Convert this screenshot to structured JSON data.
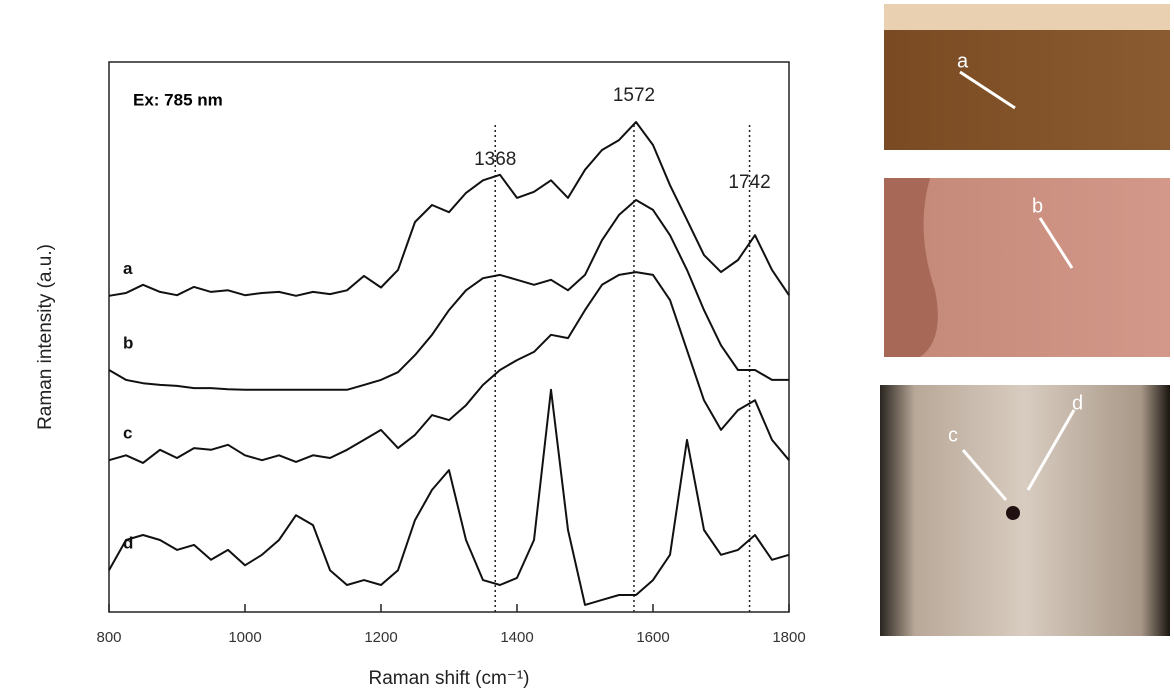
{
  "chart_data": {
    "type": "line",
    "inset_label": "Ex: 785 nm",
    "x_label": "Raman shift (cm⁻¹)",
    "y_label": "Raman intensity (a.u.)",
    "xlim": [
      800,
      1800
    ],
    "xticks": [
      800,
      1000,
      1200,
      1400,
      1600,
      1800
    ],
    "ylim": [
      0,
      100
    ],
    "peaks": [
      1368,
      1572,
      1742
    ],
    "x": [
      800,
      825,
      850,
      875,
      900,
      925,
      950,
      975,
      1000,
      1025,
      1050,
      1075,
      1100,
      1125,
      1150,
      1175,
      1200,
      1225,
      1250,
      1275,
      1300,
      1325,
      1350,
      1375,
      1400,
      1425,
      1450,
      1475,
      1500,
      1525,
      1550,
      1575,
      1600,
      1625,
      1650,
      1675,
      1700,
      1725,
      1750,
      1775,
      1800
    ],
    "series": [
      {
        "name": "a",
        "color": "#111111",
        "values": [
          57.5,
          58,
          59.5,
          58.2,
          57.6,
          59.1,
          58.2,
          58.5,
          57.6,
          58,
          58.2,
          57.5,
          58.2,
          57.8,
          58.5,
          61.1,
          59,
          62.2,
          70.9,
          74,
          72.7,
          76.2,
          78.5,
          79.5,
          75.3,
          76.4,
          78.5,
          75.3,
          80.4,
          84,
          85.8,
          89.1,
          84.9,
          77.6,
          71.3,
          64.9,
          61.8,
          64,
          68.5,
          62.2,
          57.6
        ]
      },
      {
        "name": "b",
        "color": "#111111",
        "values": [
          44,
          42.2,
          41.6,
          41.3,
          41.1,
          40.7,
          40.7,
          40.5,
          40.4,
          40.4,
          40.4,
          40.4,
          40.4,
          40.4,
          40.4,
          41.3,
          42.2,
          43.6,
          46.7,
          50.4,
          54.9,
          58.5,
          60.7,
          61.3,
          60.4,
          59.5,
          60.4,
          58.5,
          61.3,
          67.6,
          72.2,
          74.9,
          73.1,
          68.5,
          62.2,
          54.9,
          48.5,
          44,
          44,
          42.2,
          42.2
        ]
      },
      {
        "name": "c",
        "color": "#111111",
        "values": [
          27.6,
          28.5,
          27.1,
          29.5,
          28,
          29.8,
          29.5,
          30.4,
          28.5,
          27.6,
          28.5,
          27.3,
          28.5,
          28,
          29.5,
          31.3,
          33.1,
          29.8,
          32.2,
          35.8,
          34.9,
          37.6,
          41.3,
          44,
          45.8,
          47.3,
          50.4,
          49.8,
          54.9,
          59.5,
          61.3,
          61.8,
          61.3,
          56.7,
          47.6,
          38.5,
          33.1,
          36.7,
          38.5,
          31.3,
          27.6
        ]
      },
      {
        "name": "d",
        "color": "#111111",
        "values": [
          7.6,
          13.1,
          14,
          13.1,
          11.3,
          12.2,
          9.5,
          11.3,
          8.5,
          10.4,
          13.1,
          17.6,
          15.8,
          7.6,
          4.9,
          5.8,
          4.9,
          7.6,
          16.7,
          22.2,
          25.8,
          13.1,
          5.8,
          4.9,
          6.2,
          13.1,
          40.4,
          14.9,
          1.3,
          2.2,
          3.1,
          3.1,
          5.8,
          10.4,
          31.3,
          14.9,
          10.4,
          11.3,
          14,
          9.5,
          10.4
        ]
      }
    ]
  },
  "photos": [
    {
      "labels": [
        "a"
      ]
    },
    {
      "labels": [
        "b"
      ]
    },
    {
      "labels": [
        "c",
        "d"
      ]
    }
  ]
}
